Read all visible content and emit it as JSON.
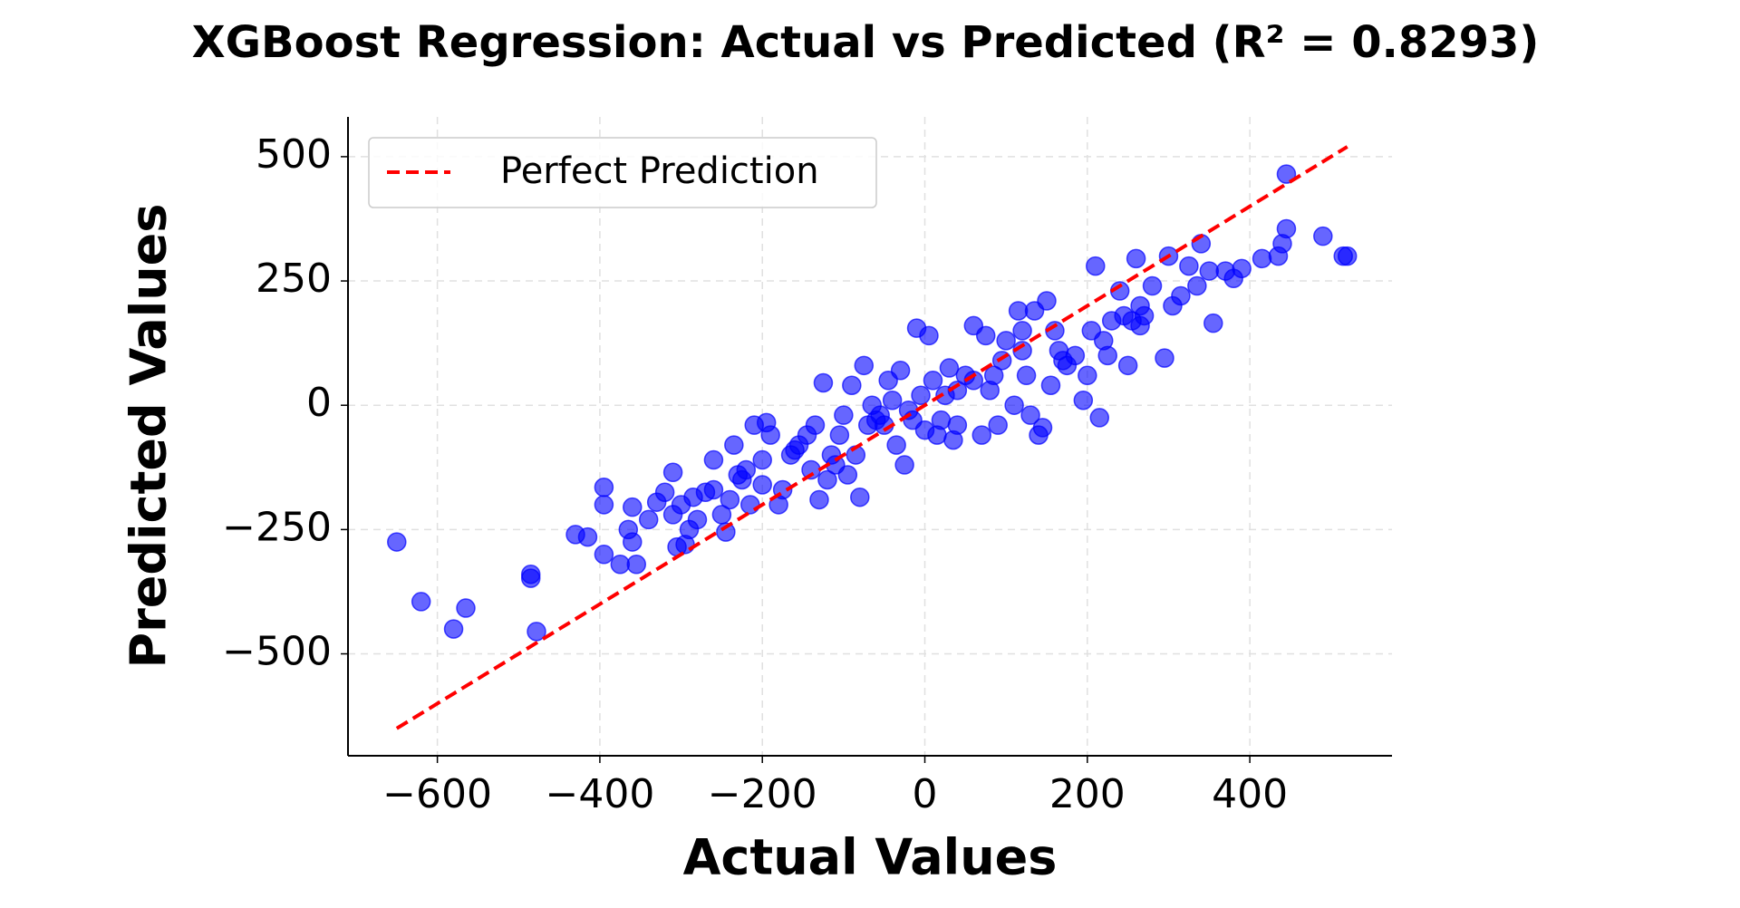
{
  "chart_data": {
    "type": "scatter",
    "title": "XGBoost Regression: Actual vs Predicted (R² = 0.8293)",
    "x_label": "Actual Values",
    "y_label": "Predicted Values",
    "xlim": [
      -710,
      575
    ],
    "ylim": [
      -705,
      580
    ],
    "xticks": [
      {
        "value": -600,
        "label": "−600"
      },
      {
        "value": -400,
        "label": "−400"
      },
      {
        "value": -200,
        "label": "−200"
      },
      0,
      200,
      400
    ],
    "yticks": [
      {
        "value": -500,
        "label": "−500"
      },
      {
        "value": -250,
        "label": "−250"
      },
      0,
      250,
      500
    ],
    "grid": true,
    "legend": "upper left",
    "points": {
      "color": "#0000ff",
      "x": [
        -650,
        -620,
        -580,
        -565,
        -485,
        -485,
        -478,
        -430,
        -415,
        -395,
        -395,
        -395,
        -375,
        -365,
        -360,
        -360,
        -355,
        -340,
        -330,
        -320,
        -310,
        -310,
        -305,
        -295,
        -290,
        -285,
        -280,
        -270,
        -260,
        -250,
        -245,
        -240,
        -235,
        -225,
        -220,
        -215,
        -210,
        -200,
        -195,
        -190,
        -180,
        -175,
        -165,
        -155,
        -145,
        -140,
        -135,
        -130,
        -125,
        -120,
        -115,
        -105,
        -95,
        -90,
        -85,
        -80,
        -75,
        -70,
        -65,
        -55,
        -45,
        -35,
        -30,
        -25,
        -15,
        -10,
        5,
        0,
        10,
        15,
        20,
        25,
        30,
        35,
        40,
        50,
        60,
        70,
        75,
        80,
        90,
        95,
        100,
        110,
        115,
        120,
        125,
        130,
        135,
        140,
        145,
        150,
        155,
        160,
        165,
        175,
        185,
        195,
        200,
        210,
        215,
        220,
        225,
        230,
        240,
        250,
        255,
        260,
        265,
        270,
        280,
        295,
        300,
        305,
        315,
        325,
        335,
        340,
        350,
        355,
        370,
        380,
        390,
        415,
        435,
        440,
        445,
        445,
        490,
        515,
        520,
        -300,
        -260,
        -230,
        -160,
        -110,
        -60,
        -40,
        -20,
        -5,
        40,
        60,
        85,
        120,
        170,
        205,
        245,
        265,
        -200,
        -100,
        -50
      ],
      "y": [
        -275,
        -395,
        -450,
        -408,
        -340,
        -348,
        -455,
        -260,
        -265,
        -165,
        -300,
        -200,
        -320,
        -250,
        -275,
        -205,
        -320,
        -230,
        -195,
        -175,
        -135,
        -220,
        -285,
        -280,
        -250,
        -185,
        -230,
        -175,
        -110,
        -220,
        -255,
        -190,
        -80,
        -150,
        -130,
        -200,
        -40,
        -110,
        -35,
        -60,
        -200,
        -170,
        -100,
        -80,
        -60,
        -130,
        -40,
        -190,
        45,
        -150,
        -100,
        -60,
        -140,
        40,
        -100,
        -185,
        80,
        -40,
        0,
        -20,
        50,
        -80,
        70,
        -120,
        -30,
        155,
        140,
        -50,
        50,
        -60,
        -30,
        20,
        75,
        -70,
        -40,
        60,
        160,
        -60,
        140,
        30,
        -40,
        90,
        130,
        0,
        190,
        150,
        60,
        -20,
        190,
        -60,
        -45,
        210,
        40,
        150,
        110,
        80,
        100,
        10,
        60,
        280,
        -25,
        130,
        100,
        170,
        230,
        80,
        170,
        295,
        200,
        180,
        240,
        95,
        300,
        200,
        220,
        280,
        240,
        325,
        270,
        165,
        270,
        255,
        275,
        295,
        300,
        325,
        355,
        465,
        340,
        300,
        300,
        -200,
        -170,
        -140,
        -90,
        -120,
        -30,
        10,
        -10,
        20,
        30,
        50,
        60,
        110,
        90,
        150,
        180,
        160,
        -160,
        -20,
        -40
      ]
    },
    "reference_line": {
      "name": "Perfect Prediction",
      "color": "#ff0000",
      "x": [
        -650,
        520
      ],
      "y": [
        -650,
        520
      ]
    }
  }
}
